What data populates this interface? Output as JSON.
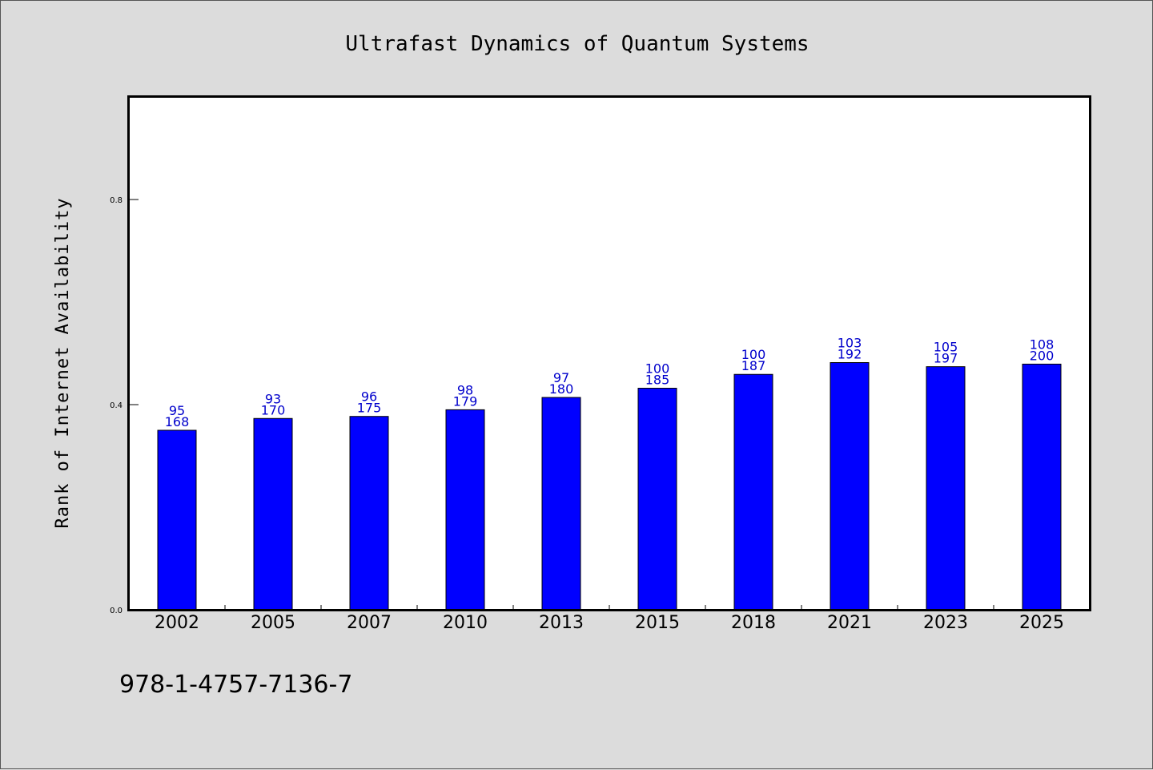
{
  "chart_data": {
    "type": "bar",
    "title": "Ultrafast Dynamics of Quantum Systems",
    "xlabel": "",
    "ylabel": "Rank of Internet Availability",
    "ylim": [
      0.0,
      1.0
    ],
    "yticks": [
      0.0,
      0.4,
      0.8
    ],
    "ytick_labels": [
      "0.0",
      "0.4",
      "0.8"
    ],
    "categories": [
      "2002",
      "2005",
      "2007",
      "2010",
      "2013",
      "2015",
      "2018",
      "2021",
      "2023",
      "2025"
    ],
    "values": [
      0.35,
      0.373,
      0.377,
      0.39,
      0.414,
      0.432,
      0.459,
      0.482,
      0.474,
      0.479
    ],
    "labels_top": [
      "95",
      "93",
      "96",
      "98",
      "97",
      "100",
      "100",
      "103",
      "105",
      "108"
    ],
    "labels_bottom": [
      "168",
      "170",
      "175",
      "179",
      "180",
      "185",
      "187",
      "192",
      "197",
      "200"
    ],
    "bar_color": "#0000ff",
    "label_color": "#0000cc",
    "grid": false,
    "legend": "none"
  },
  "footer": {
    "isbn": "978-1-4757-7136-7"
  }
}
